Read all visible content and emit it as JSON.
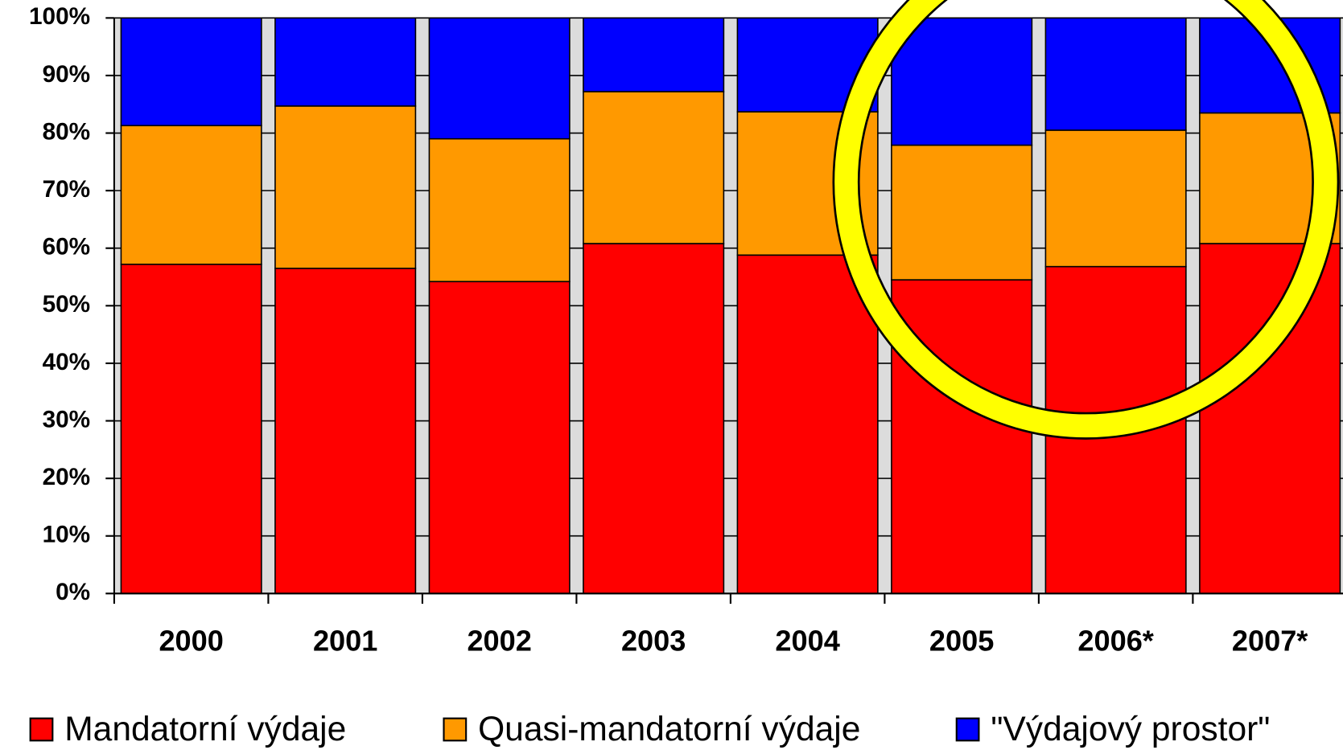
{
  "chart_data": {
    "type": "stacked_bar",
    "categories": [
      "2000",
      "2001",
      "2002",
      "2003",
      "2004",
      "2005",
      "2006*",
      "2007*"
    ],
    "series": [
      {
        "name": "Mandatorní výdaje",
        "color": "#ff0000",
        "values": [
          57.2,
          56.5,
          54.2,
          60.8,
          58.8,
          54.5,
          56.8,
          60.8
        ]
      },
      {
        "name": "Quasi-mandatorní výdaje",
        "color": "#ff9900",
        "values": [
          24.1,
          28.2,
          24.8,
          26.4,
          24.9,
          23.4,
          23.7,
          22.7
        ]
      },
      {
        "name": "\"Výdajový prostor\"",
        "color": "#0000ff",
        "values": [
          18.7,
          15.3,
          21.0,
          12.8,
          16.3,
          22.1,
          19.5,
          16.5
        ]
      }
    ],
    "ylim": [
      0,
      100
    ],
    "yticks": [
      {
        "value": 0,
        "label": "0%"
      },
      {
        "value": 10,
        "label": "10%"
      },
      {
        "value": 20,
        "label": "20%"
      },
      {
        "value": 30,
        "label": "30%"
      },
      {
        "value": 40,
        "label": "40%"
      },
      {
        "value": 50,
        "label": "50%"
      },
      {
        "value": 60,
        "label": "60%"
      },
      {
        "value": 70,
        "label": "70%"
      },
      {
        "value": 80,
        "label": "80%"
      },
      {
        "value": 90,
        "label": "90%"
      },
      {
        "value": 100,
        "label": "100%"
      }
    ],
    "legend": "bottom"
  }
}
